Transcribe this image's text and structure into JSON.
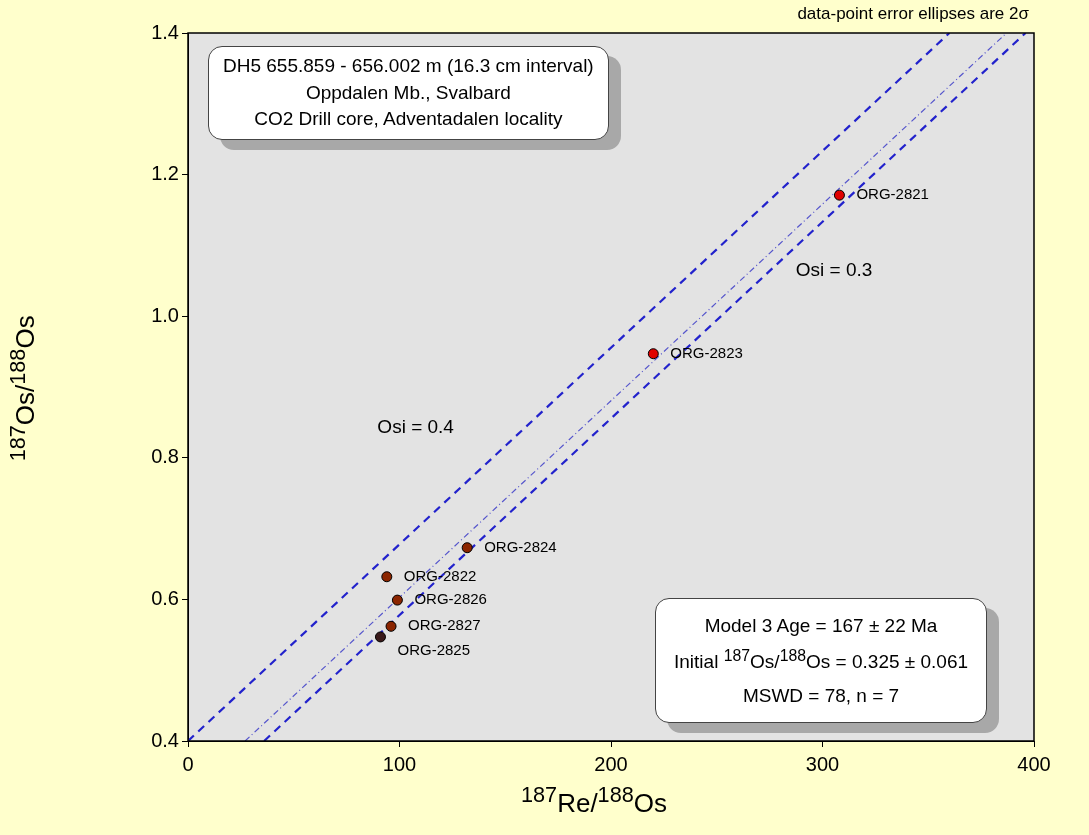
{
  "chart_data": {
    "type": "scatter",
    "xlabel": "$^{187}$Re/$^{188}$Os",
    "ylabel": "$^{187}$Os/$^{188}$Os",
    "xlim": [
      0,
      400
    ],
    "xticks": [
      0,
      100,
      200,
      300,
      400
    ],
    "ylim": [
      0.4,
      1.4
    ],
    "yticks": [
      {
        "value": 0.4,
        "label": "0.4"
      },
      {
        "value": 0.6,
        "label": "0.6"
      },
      {
        "value": 0.8,
        "label": "0.8"
      },
      {
        "value": 1.0,
        "label": "1.0"
      },
      {
        "value": 1.2,
        "label": "1.2"
      },
      {
        "value": 1.4,
        "label": "1.4"
      }
    ],
    "grid": false,
    "legend": false,
    "series": [
      {
        "type": "line",
        "name": "Osi = 0.4",
        "marker": "none",
        "line_style": "dashed",
        "color": "#2222cc",
        "x": [
          0,
          360
        ],
        "values": [
          0.4,
          1.4
        ]
      },
      {
        "type": "line",
        "name": "Osi = 0.3",
        "marker": "none",
        "line_style": "dashed",
        "color": "#2222cc",
        "x": [
          36,
          396
        ],
        "values": [
          0.4,
          1.4
        ]
      },
      {
        "type": "line",
        "marker": "none",
        "line_style": "dotted",
        "color": "#5555cc",
        "x": [
          27,
          387
        ],
        "values": [
          0.4,
          1.4
        ]
      },
      {
        "marker": "circle",
        "x": [
          308,
          94,
          220,
          132,
          91,
          99,
          96
        ],
        "values": [
          1.171,
          0.632,
          0.947,
          0.673,
          0.547,
          0.599,
          0.562
        ],
        "colors": [
          "#e00000",
          "#8b2500",
          "#e00000",
          "#8b2500",
          "#3a1a1a",
          "#8b2500",
          "#8b2500"
        ]
      }
    ],
    "annotations": [
      "DH5 655.859 - 656.002 m (16.3 cm interval)\nOppdalen Mb., Svalbard\nCO2 Drill core, Adventadalen locality",
      "data-point error ellipses are 2σ",
      "Model 3 Age = 167 ± 22 Ma\nInitial $^{187}$Os/$^{188}$Os = 0.325 ± 0.061\nMSWD = 78, n = 7",
      {
        "text": "ORG-2821",
        "x": 308,
        "y": 1.171
      },
      {
        "text": "ORG-2822",
        "x": 94,
        "y": 0.632
      },
      {
        "text": "ORG-2823",
        "x": 220,
        "y": 0.947
      },
      {
        "text": "ORG-2824",
        "x": 132,
        "y": 0.673
      },
      {
        "text": "ORG-2825",
        "x": 91,
        "y": 0.547
      },
      {
        "text": "ORG-2826",
        "x": 99,
        "y": 0.599
      },
      {
        "text": "ORG-2827",
        "x": 96,
        "y": 0.562
      }
    ]
  }
}
